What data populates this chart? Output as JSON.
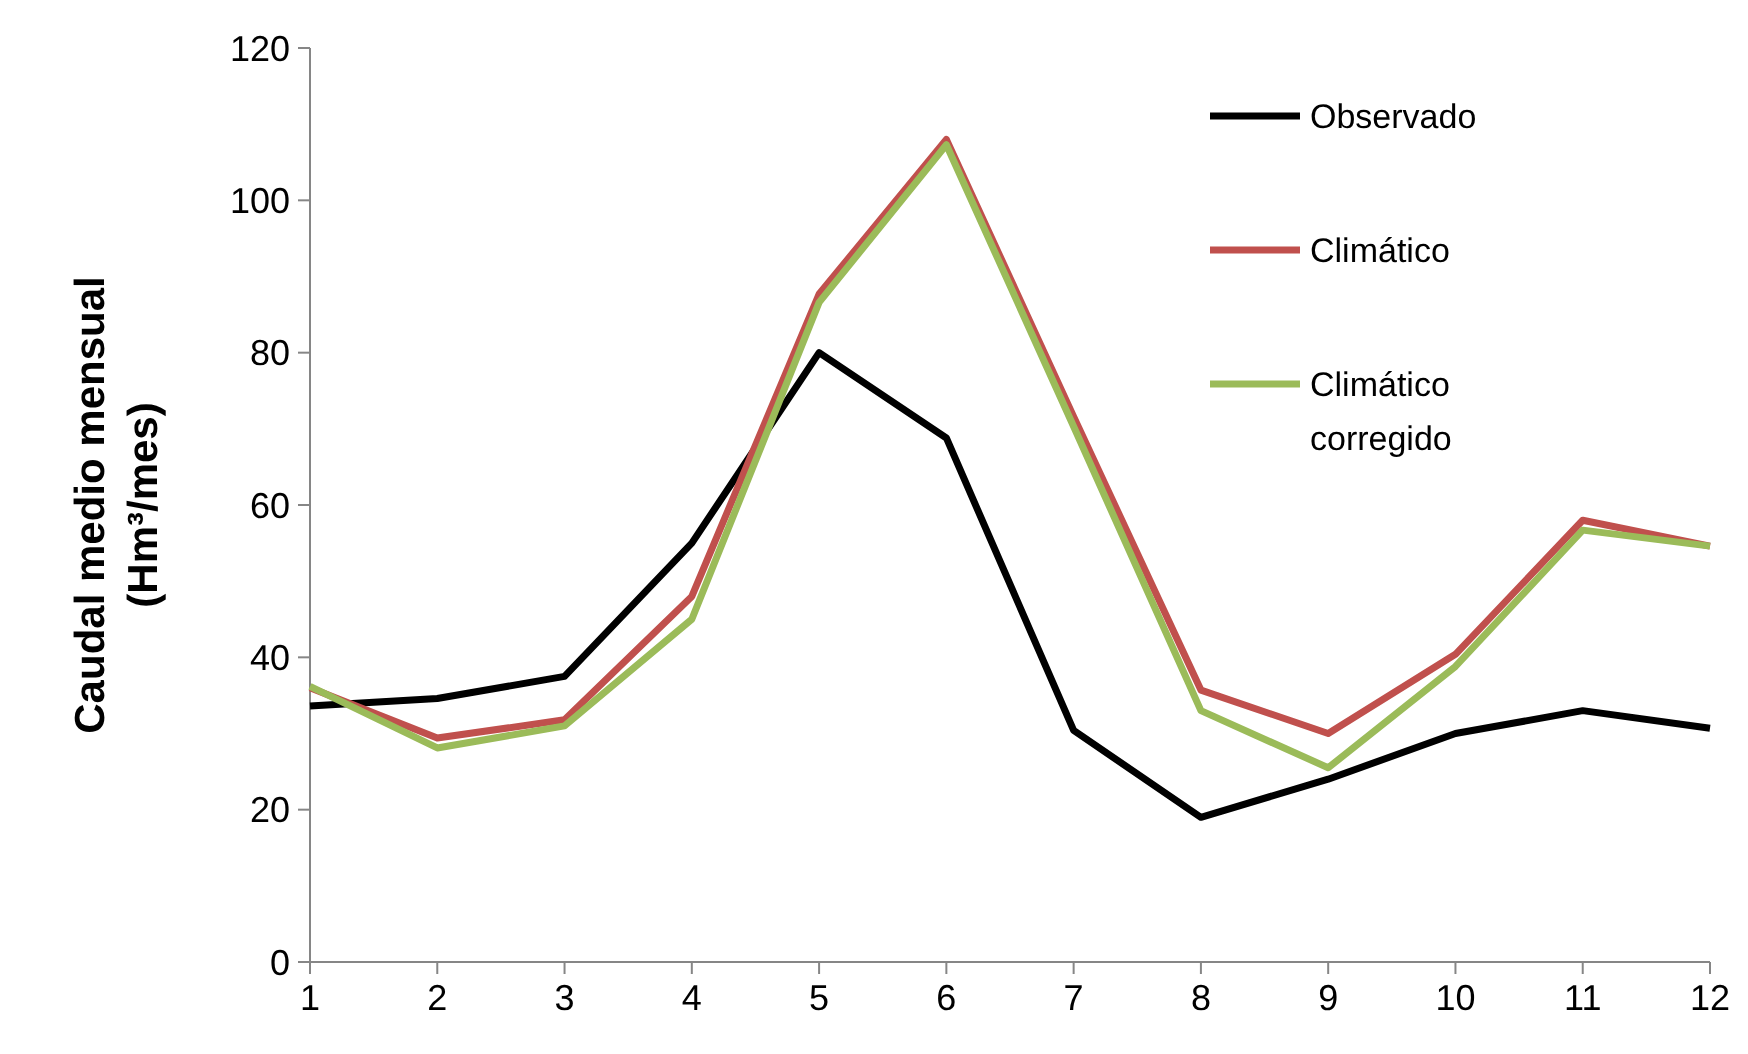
{
  "chart_data": {
    "type": "line",
    "ylabel": "Caudal medio mensual\n(Hm³/mes)",
    "x": [
      1,
      2,
      3,
      4,
      5,
      6,
      7,
      8,
      9,
      10,
      11,
      12
    ],
    "xlim": [
      1,
      12
    ],
    "xticks": [
      1,
      2,
      3,
      4,
      5,
      6,
      7,
      8,
      9,
      10,
      11,
      12
    ],
    "ylim": [
      0,
      120
    ],
    "yticks": [
      0,
      20,
      40,
      60,
      80,
      100,
      120
    ],
    "grid": false,
    "legend": "top right",
    "marker": "none",
    "line_style": "solid",
    "series": [
      {
        "name": "Observado",
        "color": "#000000",
        "values": [
          33.6,
          34.6,
          37.5,
          55,
          80,
          68.8,
          30.4,
          19,
          24,
          30,
          33,
          30.7
        ]
      },
      {
        "name": "Climático",
        "color": "#c0504d",
        "values": [
          36,
          29.4,
          31.8,
          48,
          87.7,
          108,
          71.6,
          35.7,
          30,
          40.4,
          58,
          54.6
        ]
      },
      {
        "name": "Climático corregido",
        "color": "#9bbb59",
        "values": [
          36.2,
          28.1,
          31,
          45,
          86.6,
          107.3,
          70.3,
          33,
          25.5,
          38.8,
          56.7,
          54.6
        ]
      }
    ]
  }
}
